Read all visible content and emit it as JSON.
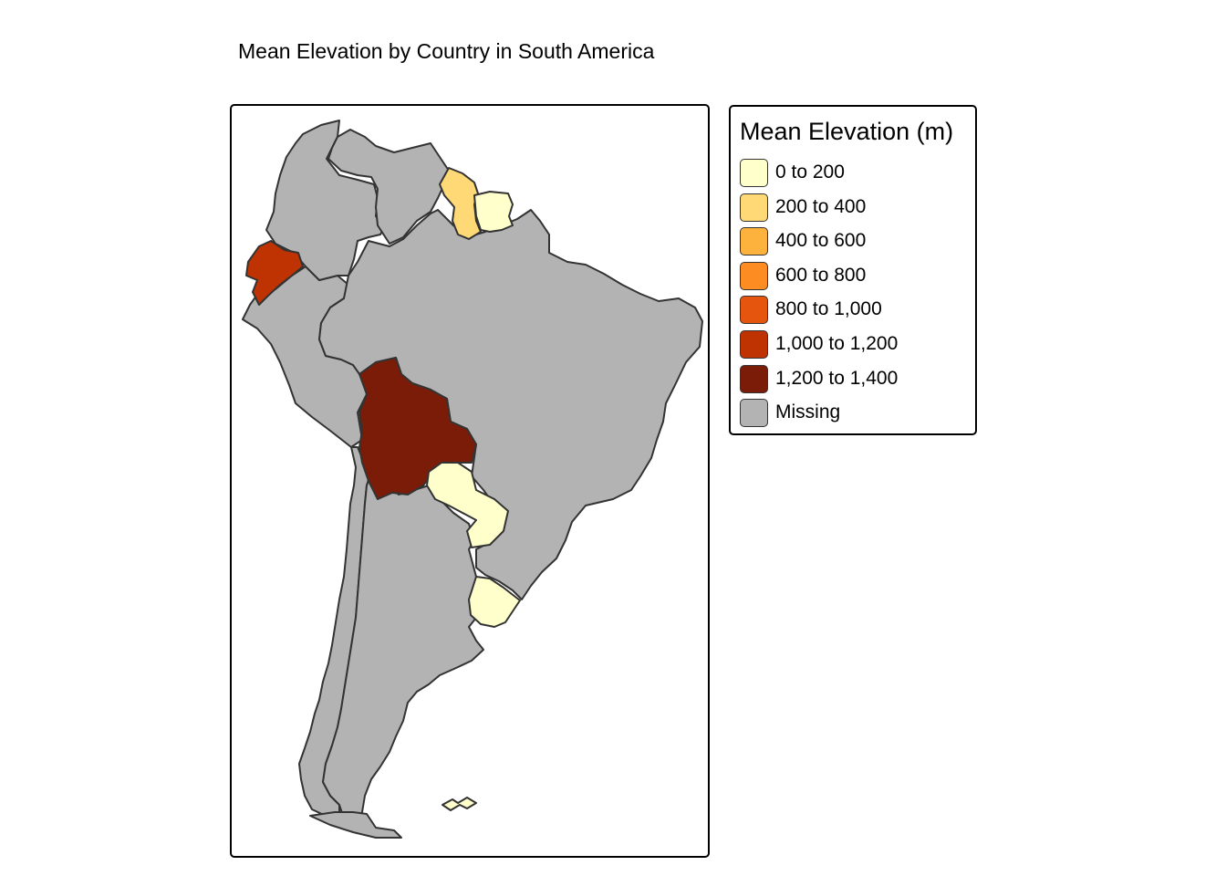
{
  "title": "Mean Elevation by Country in South America",
  "legend": {
    "title": "Mean Elevation (m)",
    "items": [
      {
        "label": "0 to 200",
        "color": "#ffffcc"
      },
      {
        "label": "200 to 400",
        "color": "#fed976"
      },
      {
        "label": "400 to 600",
        "color": "#feb23e"
      },
      {
        "label": "600 to 800",
        "color": "#fd8d22"
      },
      {
        "label": "800 to 1,000",
        "color": "#e6550e"
      },
      {
        "label": "1,000 to 1,200",
        "color": "#bf3303"
      },
      {
        "label": "1,200 to 1,400",
        "color": "#7a1c07"
      },
      {
        "label": "Missing",
        "color": "#b3b3b3"
      }
    ]
  },
  "regions": [
    {
      "name": "Colombia",
      "bin": "Missing",
      "color": "#b3b3b3"
    },
    {
      "name": "Venezuela",
      "bin": "Missing",
      "color": "#b3b3b3"
    },
    {
      "name": "Guyana",
      "bin": "200 to 400",
      "color": "#fed976"
    },
    {
      "name": "Suriname",
      "bin": "0 to 200",
      "color": "#ffffcc"
    },
    {
      "name": "Ecuador",
      "bin": "1,000 to 1,200",
      "color": "#bf3303"
    },
    {
      "name": "Peru",
      "bin": "Missing",
      "color": "#b3b3b3"
    },
    {
      "name": "Brazil",
      "bin": "Missing",
      "color": "#b3b3b3"
    },
    {
      "name": "Bolivia",
      "bin": "1,200 to 1,400",
      "color": "#7a1c07"
    },
    {
      "name": "Paraguay",
      "bin": "0 to 200",
      "color": "#ffffcc"
    },
    {
      "name": "Uruguay",
      "bin": "0 to 200",
      "color": "#ffffcc"
    },
    {
      "name": "Chile",
      "bin": "Missing",
      "color": "#b3b3b3"
    },
    {
      "name": "Argentina",
      "bin": "Missing",
      "color": "#b3b3b3"
    },
    {
      "name": "Falkland Islands",
      "bin": "0 to 200",
      "color": "#ffffcc"
    }
  ]
}
